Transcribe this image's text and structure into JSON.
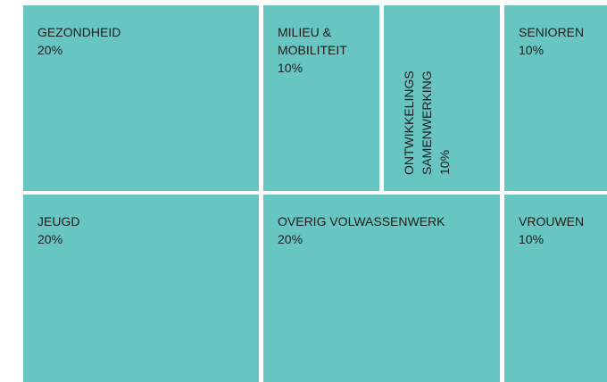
{
  "chart_data": {
    "type": "treemap",
    "categories": [
      "GEZONDHEID",
      "MILIEU & MOBILITEIT",
      "ONTWIKKELINGS SAMENWERKING",
      "SENIOREN",
      "JEUGD",
      "OVERIG VOLWASSENWERK",
      "VROUWEN"
    ],
    "values": [
      20,
      10,
      10,
      10,
      20,
      20,
      10
    ],
    "value_labels": [
      "20%",
      "10%",
      "10%",
      "10%",
      "20%",
      "20%",
      "10%"
    ],
    "color": "#67c6c2"
  }
}
